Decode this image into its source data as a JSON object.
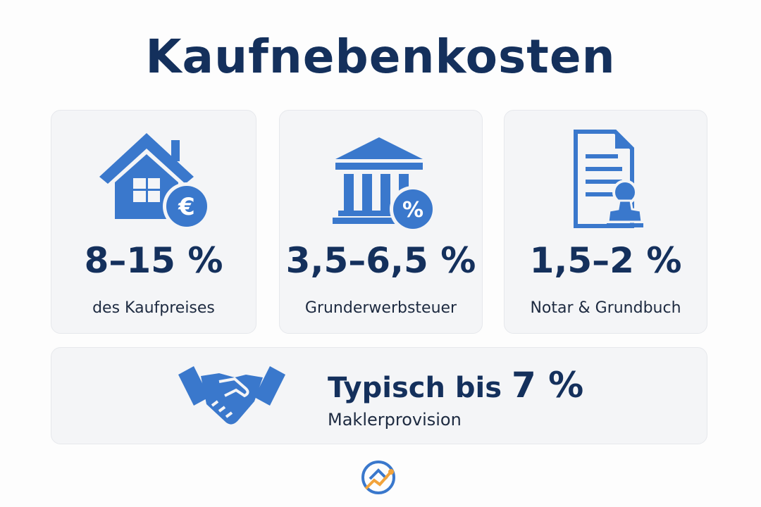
{
  "header": {
    "title": "Kaufnebenkosten"
  },
  "cards": [
    {
      "value": "8–15 %",
      "label": "des Kaufpreises"
    },
    {
      "value": "3,5–6,5 %",
      "label": "Grunderwerbsteuer"
    },
    {
      "value": "1,5–2 %",
      "label": "Notar & Grundbuch"
    }
  ],
  "footer_card": {
    "prefix": "Typisch bis",
    "value": "7 %",
    "label": "Maklerprovision"
  }
}
